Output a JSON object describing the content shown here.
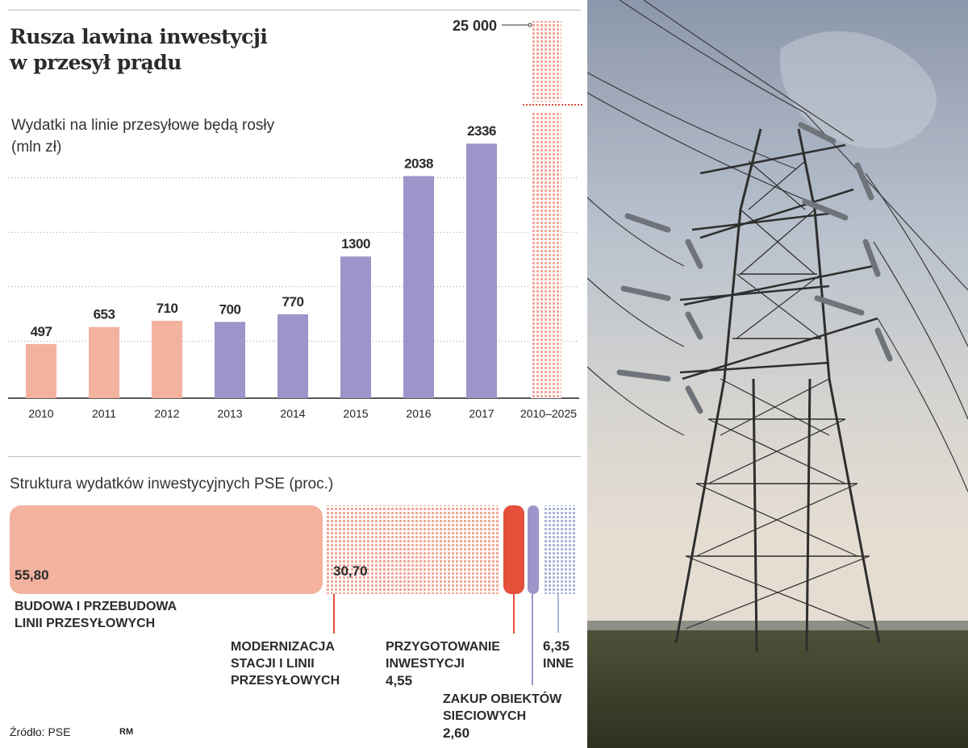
{
  "title": {
    "line1": "Rusza lawina inwestycji",
    "line2": "w przesył prądu"
  },
  "chart_data": [
    {
      "type": "bar",
      "title": "Wydatki na linie przesyłowe będą rosły",
      "unit": "(mln zł)",
      "categories": [
        "2010",
        "2011",
        "2012",
        "2013",
        "2014",
        "2015",
        "2016",
        "2017"
      ],
      "values": [
        497,
        653,
        710,
        700,
        770,
        1300,
        2038,
        2336
      ],
      "value_labels": [
        "497",
        "653",
        "710",
        "700",
        "770",
        "1300",
        "2038",
        "2336"
      ],
      "bar_colors": [
        "#f2b29e",
        "#f2b29e",
        "#f2b29e",
        "#9c95c9",
        "#9c95c9",
        "#9c95c9",
        "#9c95c9",
        "#9c95c9"
      ],
      "ylim": [
        0,
        2500
      ],
      "grid": true,
      "total": {
        "category": "2010–2025",
        "value": 25000,
        "label": "25 000",
        "axis_break": true,
        "color": "#f2a898"
      }
    },
    {
      "type": "bar",
      "title": "Struktura wydatków inwestycyjnych PSE (proc.)",
      "segments": [
        {
          "name": "BUDOWA I PRZEBUDOWA LINII PRZESYŁOWYCH",
          "lines": [
            "BUDOWA I PRZEBUDOWA",
            "LINII PRZESYŁOWYCH"
          ],
          "value": 55.8,
          "label": "55,80",
          "color": "#f2b29e"
        },
        {
          "name": "MODERNIZACJA STACJI I LINII PRZESYŁOWYCH",
          "lines": [
            "MODERNIZACJA",
            "STACJI I LINII",
            "PRZESYŁOWYCH"
          ],
          "value": 30.7,
          "label": "30,70",
          "color": "#f2a898"
        },
        {
          "name": "PRZYGOTOWANIE INWESTYCJI",
          "lines": [
            "PRZYGOTOWANIE",
            "INWESTYCJI"
          ],
          "value": 4.55,
          "label": "4,55",
          "color": "#e4503a"
        },
        {
          "name": "ZAKUP OBIEKTÓW SIECIOWYCH",
          "lines": [
            "ZAKUP OBIEKTÓW",
            "SIECIOWYCH"
          ],
          "value": 2.6,
          "label": "2,60",
          "color": "#9c95c9"
        },
        {
          "name": "INNE",
          "lines": [
            "INNE"
          ],
          "value": 6.35,
          "label": "6,35",
          "color": "#a9b6dc"
        }
      ]
    }
  ],
  "source": "Źródło: PSE",
  "author": "RM",
  "photo": {
    "subject": "high-voltage-transmission-tower"
  }
}
